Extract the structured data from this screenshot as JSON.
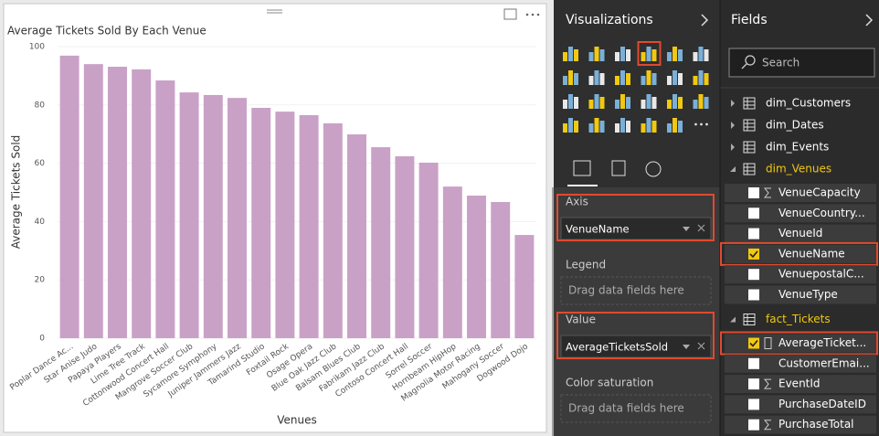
{
  "chart_data": {
    "type": "bar",
    "title": "Average Tickets Sold By Each Venue",
    "x_label": "Venues",
    "y_label": "Average Tickets Sold",
    "categories": [
      "Poplar Dance Ac...",
      "Star Anise Judo",
      "Papaya Players",
      "Lime Tree Track",
      "Cottonwood Concert Hall",
      "Mangrove Soccer Club",
      "Sycamore Symphony",
      "Juniper Jammers Jazz",
      "Tamarind Studio",
      "Foxtail Rock",
      "Osage Opera",
      "Blue Oak Jazz Club",
      "Balsam Blues Club",
      "Fabrikam Jazz Club",
      "Contoso Concert Hall",
      "Sorrel Soccer",
      "Hornbeam HipHop",
      "Magnolia Motor Racing",
      "Mahogany Soccer",
      "Dogwood Dojo"
    ],
    "values": [
      96.9,
      94.0,
      93.1,
      92.2,
      88.4,
      84.3,
      83.4,
      82.4,
      79.0,
      77.7,
      76.5,
      73.7,
      69.9,
      65.5,
      62.4,
      60.2,
      52.0,
      48.9,
      46.7,
      35.4
    ],
    "color": "#c9a1c6",
    "ylim": [
      0,
      100
    ],
    "yticks": [
      0,
      20,
      40,
      60,
      80,
      100
    ],
    "grid": true
  },
  "visualizations": {
    "title": "Visualizations",
    "wells": [
      {
        "label": "Axis",
        "field": "VenueName"
      },
      {
        "label": "Legend",
        "placeholder": "Drag data fields here"
      },
      {
        "label": "Value",
        "field": "AverageTicketsSold"
      },
      {
        "label": "Color saturation",
        "placeholder": "Drag data fields here"
      }
    ]
  },
  "fields": {
    "title": "Fields",
    "search": "Search",
    "tables": [
      {
        "name": "dim_Customers"
      },
      {
        "name": "dim_Dates"
      },
      {
        "name": "dim_Events"
      },
      {
        "name": "dim_Venues",
        "fields": [
          {
            "name": "VenueCapacity",
            "sum": true
          },
          {
            "name": "VenueCountry..."
          },
          {
            "name": "VenueId"
          },
          {
            "name": "VenueName",
            "checked": true
          },
          {
            "name": "VenuepostalC..."
          },
          {
            "name": "VenueType"
          }
        ]
      },
      {
        "name": "fact_Tickets",
        "fields": [
          {
            "name": "AverageTicket...",
            "checked": true,
            "measure": true
          },
          {
            "name": "CustomerEmai..."
          },
          {
            "name": "EventId",
            "sum": true
          },
          {
            "name": "PurchaseDateID"
          },
          {
            "name": "PurchaseTotal",
            "sum": true
          }
        ]
      }
    ]
  }
}
